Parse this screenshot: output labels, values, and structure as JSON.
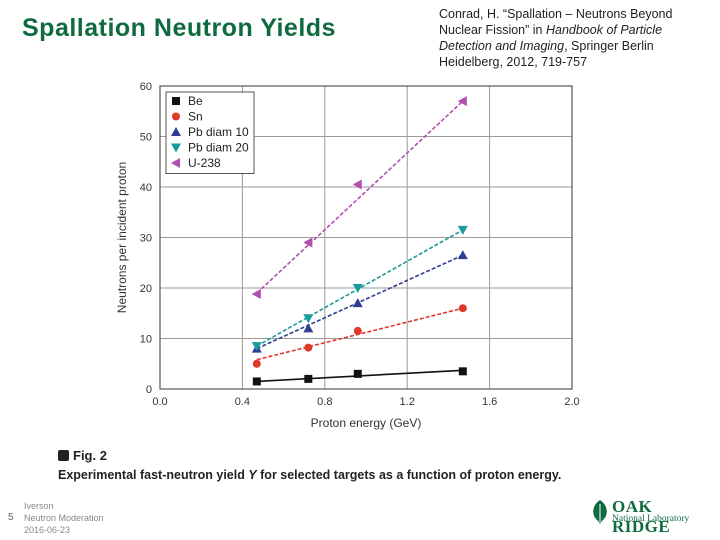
{
  "slide": {
    "title": "Spallation Neutron Yields",
    "citation": {
      "part1": "Conrad, H. “Spallation – Neutrons Beyond Nuclear Fission” in ",
      "italic": "Handbook of Particle Detection and Imaging",
      "part2": ", Springer Berlin Heidelberg, 2012, 719-757"
    },
    "figure_label": "Fig. 2",
    "caption_pre": "Experimental fast-neutron yield ",
    "caption_var": "Y",
    "caption_post": " for selected targets as a function of proton energy.",
    "footer": {
      "page_number": "5",
      "author": "Iverson",
      "subtitle": "Neutron Moderation",
      "date": "2016-06-23"
    },
    "logo": {
      "line1": "OAK RIDGE",
      "line2": "National Laboratory"
    }
  },
  "chart_data": {
    "type": "scatter",
    "xlabel": "Proton energy (GeV)",
    "ylabel": "Neutrons per incident proton",
    "xlim": [
      0.0,
      2.0
    ],
    "ylim": [
      0,
      60
    ],
    "x_ticks": [
      "0.0",
      "0.4",
      "0.8",
      "1.2",
      "1.6",
      "2.0"
    ],
    "y_ticks": [
      "0",
      "10",
      "20",
      "30",
      "40",
      "50",
      "60"
    ],
    "grid": true,
    "legend_position": "top-left",
    "series": [
      {
        "name": "Be",
        "marker": "square",
        "color": "#111111",
        "x": [
          0.47,
          0.72,
          0.96,
          1.47
        ],
        "y": [
          1.5,
          2.0,
          3.0,
          3.5
        ],
        "fit": [
          [
            0.47,
            1.5
          ],
          [
            1.47,
            3.7
          ]
        ]
      },
      {
        "name": "Sn",
        "marker": "circle",
        "color": "#e0382b",
        "x": [
          0.47,
          0.72,
          0.96,
          1.47
        ],
        "y": [
          5.0,
          8.2,
          11.5,
          16.0
        ],
        "fit": [
          [
            0.47,
            5.8
          ],
          [
            1.47,
            16.0
          ]
        ]
      },
      {
        "name": "Pb diam 10",
        "marker": "triangle-up",
        "color": "#2e3f93",
        "x": [
          0.47,
          0.72,
          0.96,
          1.47
        ],
        "y": [
          8.0,
          12.0,
          17.0,
          26.5
        ],
        "fit": [
          [
            0.47,
            8.0
          ],
          [
            1.47,
            26.5
          ]
        ]
      },
      {
        "name": "Pb diam 20",
        "marker": "triangle-down",
        "color": "#1a9a9a",
        "x": [
          0.47,
          0.72,
          0.96,
          1.47
        ],
        "y": [
          8.5,
          14.0,
          20.0,
          31.5
        ],
        "fit": [
          [
            0.47,
            8.5
          ],
          [
            1.47,
            31.5
          ]
        ]
      },
      {
        "name": "U-238",
        "marker": "triangle-left",
        "color": "#b04fb0",
        "x": [
          0.47,
          0.72,
          0.96,
          1.47
        ],
        "y": [
          18.8,
          29.0,
          40.5,
          57.0
        ],
        "fit": [
          [
            0.47,
            19.0
          ],
          [
            1.47,
            57.0
          ]
        ]
      }
    ]
  }
}
